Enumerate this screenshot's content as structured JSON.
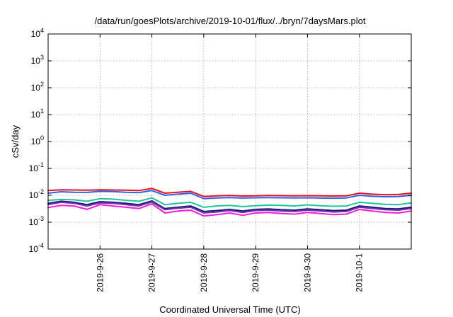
{
  "chart_data": {
    "type": "line",
    "title": "/data/run/goesPlots/archive/2019-10-01/flux/../bryn/7daysMars.plot",
    "xlabel": "Coordinated Universal Time (UTC)",
    "ylabel": "cSv/day",
    "yscale": "log",
    "ylim": [
      0.0001,
      10000
    ],
    "xlim": [
      "2019-09-25T00:00",
      "2019-10-02T00:00"
    ],
    "grid": true,
    "yticks": [
      {
        "base": "10",
        "exp": "-4",
        "value": 0.0001
      },
      {
        "base": "10",
        "exp": "-3",
        "value": 0.001
      },
      {
        "base": "10",
        "exp": "-2",
        "value": 0.01
      },
      {
        "base": "10",
        "exp": "-1",
        "value": 0.1
      },
      {
        "base": "10",
        "exp": "0",
        "value": 1
      },
      {
        "base": "10",
        "exp": "1",
        "value": 10
      },
      {
        "base": "10",
        "exp": "2",
        "value": 100
      },
      {
        "base": "10",
        "exp": "3",
        "value": 1000
      },
      {
        "base": "10",
        "exp": "4",
        "value": 10000
      }
    ],
    "xticks": [
      {
        "label": "2019-9-26",
        "x": "2019-09-26T00:00"
      },
      {
        "label": "2019-9-27",
        "x": "2019-09-27T00:00"
      },
      {
        "label": "2019-9-28",
        "x": "2019-09-28T00:00"
      },
      {
        "label": "2019-9-29",
        "x": "2019-09-29T00:00"
      },
      {
        "label": "2019-9-30",
        "x": "2019-09-30T00:00"
      },
      {
        "label": "2019-10-1",
        "x": "2019-10-01T00:00"
      }
    ],
    "x": [
      "2019-09-25T00:00",
      "2019-09-25T06:00",
      "2019-09-25T12:00",
      "2019-09-25T18:00",
      "2019-09-26T00:00",
      "2019-09-26T06:00",
      "2019-09-26T12:00",
      "2019-09-26T18:00",
      "2019-09-27T00:00",
      "2019-09-27T06:00",
      "2019-09-27T12:00",
      "2019-09-27T18:00",
      "2019-09-28T00:00",
      "2019-09-28T06:00",
      "2019-09-28T12:00",
      "2019-09-28T18:00",
      "2019-09-29T00:00",
      "2019-09-29T06:00",
      "2019-09-29T12:00",
      "2019-09-29T18:00",
      "2019-09-30T00:00",
      "2019-09-30T06:00",
      "2019-09-30T12:00",
      "2019-09-30T18:00",
      "2019-10-01T00:00",
      "2019-10-01T06:00",
      "2019-10-01T12:00",
      "2019-10-01T18:00",
      "2019-10-02T00:00"
    ],
    "series": [
      {
        "color": "#e8101c",
        "values": [
          0.015,
          0.016,
          0.0158,
          0.0155,
          0.016,
          0.0158,
          0.0155,
          0.015,
          0.018,
          0.012,
          0.013,
          0.014,
          0.009,
          0.0095,
          0.0098,
          0.0094,
          0.0096,
          0.0098,
          0.0097,
          0.0095,
          0.0097,
          0.0095,
          0.0094,
          0.0095,
          0.012,
          0.011,
          0.0105,
          0.0108,
          0.012
        ]
      },
      {
        "color": "#2a63e8",
        "values": [
          0.012,
          0.0135,
          0.013,
          0.0128,
          0.014,
          0.0138,
          0.013,
          0.0126,
          0.015,
          0.01,
          0.011,
          0.012,
          0.0075,
          0.008,
          0.0082,
          0.0079,
          0.0081,
          0.0082,
          0.0081,
          0.008,
          0.0081,
          0.0079,
          0.0078,
          0.008,
          0.01,
          0.0092,
          0.0088,
          0.009,
          0.01
        ]
      },
      {
        "color": "#22c49a",
        "values": [
          0.0065,
          0.007,
          0.0068,
          0.006,
          0.0075,
          0.0072,
          0.0065,
          0.006,
          0.008,
          0.0045,
          0.005,
          0.0055,
          0.0036,
          0.004,
          0.0042,
          0.0038,
          0.0041,
          0.0043,
          0.0042,
          0.004,
          0.0044,
          0.0041,
          0.0039,
          0.004,
          0.0055,
          0.005,
          0.0046,
          0.0045,
          0.0052
        ]
      },
      {
        "color": "#1a1a70",
        "values": [
          0.005,
          0.006,
          0.0055,
          0.0045,
          0.0058,
          0.0055,
          0.005,
          0.0045,
          0.0062,
          0.0032,
          0.0036,
          0.004,
          0.0025,
          0.0027,
          0.003,
          0.0026,
          0.003,
          0.0031,
          0.0029,
          0.0028,
          0.0031,
          0.0029,
          0.0027,
          0.0028,
          0.004,
          0.0036,
          0.0032,
          0.0031,
          0.0036
        ]
      },
      {
        "color": "#7a2fb8",
        "values": [
          0.0045,
          0.0055,
          0.005,
          0.004,
          0.0052,
          0.005,
          0.0045,
          0.004,
          0.0056,
          0.0029,
          0.0033,
          0.0036,
          0.0022,
          0.0024,
          0.0027,
          0.0023,
          0.0027,
          0.0028,
          0.0026,
          0.0025,
          0.0028,
          0.0026,
          0.0024,
          0.0025,
          0.0036,
          0.0032,
          0.0029,
          0.0028,
          0.0032
        ]
      },
      {
        "color": "#ee1ed2",
        "values": [
          0.0035,
          0.0042,
          0.004,
          0.003,
          0.0045,
          0.004,
          0.0036,
          0.0032,
          0.0048,
          0.0022,
          0.0026,
          0.0028,
          0.0017,
          0.0019,
          0.0022,
          0.0018,
          0.0022,
          0.0023,
          0.0021,
          0.002,
          0.0023,
          0.0021,
          0.0019,
          0.002,
          0.003,
          0.0026,
          0.0023,
          0.0022,
          0.0026
        ]
      }
    ]
  }
}
